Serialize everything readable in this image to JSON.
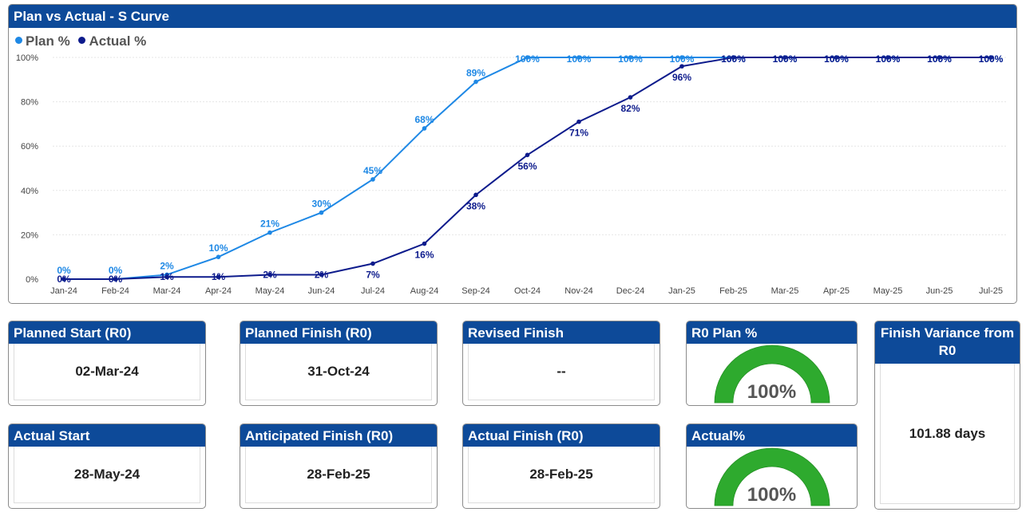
{
  "chart": {
    "title": "Plan vs Actual - S Curve",
    "legend": [
      {
        "name": "Plan %",
        "color": "#1e88e5"
      },
      {
        "name": "Actual %",
        "color": "#0d1b8c"
      }
    ]
  },
  "chart_data": {
    "type": "line",
    "title": "Plan vs Actual - S Curve",
    "categories": [
      "Jan-24",
      "Feb-24",
      "Mar-24",
      "Apr-24",
      "May-24",
      "Jun-24",
      "Jul-24",
      "Aug-24",
      "Sep-24",
      "Oct-24",
      "Nov-24",
      "Dec-24",
      "Jan-25",
      "Feb-25",
      "Mar-25",
      "Apr-25",
      "May-25",
      "Jun-25",
      "Jul-25"
    ],
    "series": [
      {
        "name": "Plan %",
        "color": "#1e88e5",
        "values": [
          0,
          0,
          2,
          10,
          21,
          30,
          45,
          68,
          89,
          100,
          100,
          100,
          100,
          100,
          100,
          100,
          100,
          100,
          100
        ]
      },
      {
        "name": "Actual %",
        "color": "#0d1b8c",
        "values": [
          0,
          0,
          1,
          1,
          2,
          2,
          7,
          16,
          38,
          56,
          71,
          82,
          96,
          100,
          100,
          100,
          100,
          100,
          100
        ]
      }
    ],
    "ylim": [
      0,
      100
    ],
    "yticks": [
      "0%",
      "20%",
      "40%",
      "60%",
      "80%",
      "100%"
    ],
    "xlabel": "",
    "ylabel": "",
    "grid": true,
    "legend": "top-left"
  },
  "cards": {
    "planned_start": {
      "title": "Planned Start (R0)",
      "value": "02-Mar-24"
    },
    "planned_finish": {
      "title": "Planned Finish (R0)",
      "value": "31-Oct-24"
    },
    "revised_finish": {
      "title": "Revised Finish",
      "value": "--"
    },
    "actual_start": {
      "title": "Actual Start",
      "value": "28-May-24"
    },
    "anticipated_finish": {
      "title": "Anticipated Finish (R0)",
      "value": "28-Feb-25"
    },
    "actual_finish": {
      "title": "Actual Finish (R0)",
      "value": "28-Feb-25"
    },
    "r0_plan": {
      "title": "R0 Plan %",
      "value": "100%",
      "fraction": 1.0
    },
    "actual_pct": {
      "title": "Actual%",
      "value": "100%",
      "fraction": 1.0
    },
    "finish_variance": {
      "title": "Finish Variance from R0",
      "value": "101.88 days"
    }
  },
  "colors": {
    "header": "#0d4a99",
    "gauge_fill": "#2eaa2e",
    "gauge_bg": "#d9d9d9"
  }
}
